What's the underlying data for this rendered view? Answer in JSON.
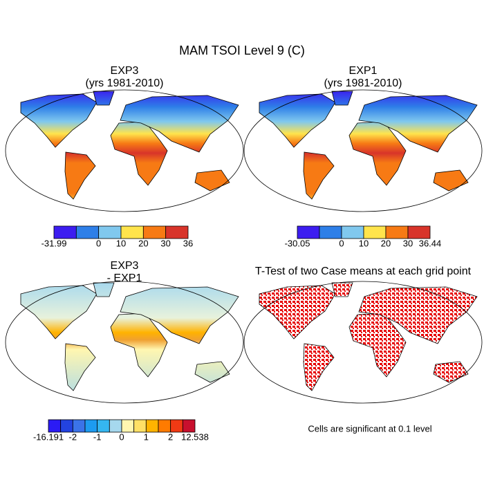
{
  "title": "MAM TSOI Level 9 (C)",
  "panels": [
    {
      "title": "EXP3",
      "subtitle": "(yrs 1981-2010)",
      "colorbar": {
        "colors": [
          "#3c1df0",
          "#2e7fe8",
          "#80c8ee",
          "#ffe44c",
          "#f77a14",
          "#d8342a"
        ],
        "boundaries": [
          -31.99,
          null,
          0,
          10,
          20,
          30,
          36
        ]
      }
    },
    {
      "title": "EXP1",
      "subtitle": "(yrs 1981-2010)",
      "colorbar": {
        "colors": [
          "#3c1df0",
          "#2e7fe8",
          "#80c8ee",
          "#ffe44c",
          "#f77a14",
          "#d8342a"
        ],
        "boundaries": [
          -30.05,
          null,
          0,
          10,
          20,
          30,
          36.44
        ]
      }
    },
    {
      "title": "EXP3",
      "subtitle": "- EXP1",
      "colorbar": {
        "colors": [
          "#2b1bf5",
          "#2343e0",
          "#3b73e8",
          "#1d9bf0",
          "#35b6f0",
          "#a6d8ee",
          "#fff6b0",
          "#ffe066",
          "#ffb300",
          "#ff7b00",
          "#f03a14",
          "#c8102e"
        ],
        "boundaries": [
          -16.191,
          null,
          -2,
          null,
          -1,
          null,
          0,
          null,
          1,
          null,
          2,
          null,
          12.538
        ]
      }
    },
    {
      "title": "T-Test of two Case means at each grid point",
      "note": "Cells are significant at 0.1 level"
    }
  ]
}
